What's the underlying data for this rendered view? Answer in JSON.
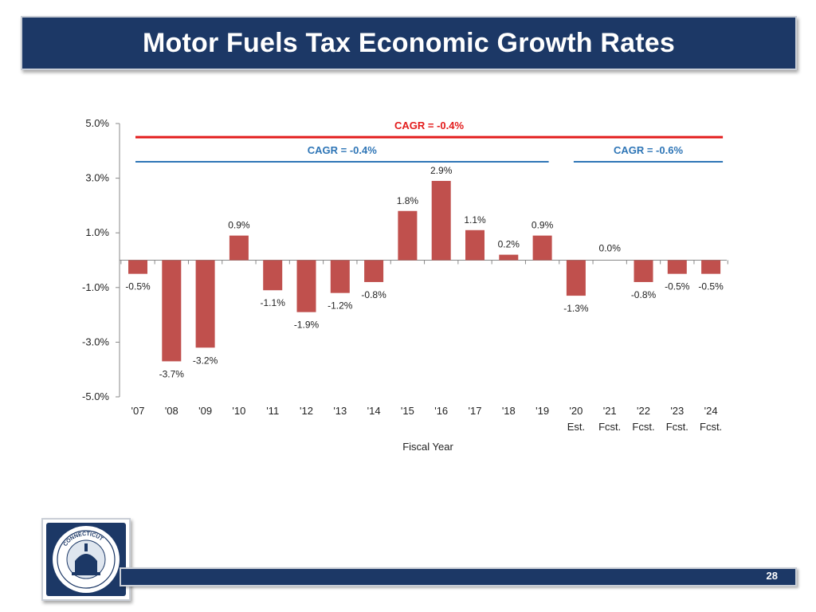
{
  "slide": {
    "title": "Motor Fuels Tax Economic Growth Rates",
    "page_number": "28",
    "logo": {
      "name": "Connecticut Office of Policy and Management seal",
      "text": "CONNECTICUT · OFFICE OF POLICY AND MANAGEMENT"
    }
  },
  "colors": {
    "header_bg": "#1c3866",
    "bar": "#c0504d",
    "cagr_overall": "#e31c1c",
    "cagr_segment": "#2e75b6",
    "axis": "#888888"
  },
  "chart_data": {
    "type": "bar",
    "title": "",
    "xlabel": "Fiscal Year",
    "ylabel": "",
    "ylim": [
      -5.0,
      5.0
    ],
    "ytick_values": [
      5,
      3,
      1,
      -1,
      -3,
      -5
    ],
    "ytick_labels": [
      "5.0%",
      "3.0%",
      "1.0%",
      "-1.0%",
      "-3.0%",
      "-5.0%"
    ],
    "categories": [
      "'07",
      "'08",
      "'09",
      "'10",
      "'11",
      "'12",
      "'13",
      "'14",
      "'15",
      "'16",
      "'17",
      "'18",
      "'19",
      "'20",
      "'21",
      "'22",
      "'23",
      "'24"
    ],
    "category_sublabels": [
      "",
      "",
      "",
      "",
      "",
      "",
      "",
      "",
      "",
      "",
      "",
      "",
      "",
      "Est.",
      "Fcst.",
      "Fcst.",
      "Fcst.",
      "Fcst."
    ],
    "values": [
      -0.5,
      -3.7,
      -3.2,
      0.9,
      -1.1,
      -1.9,
      -1.2,
      -0.8,
      1.8,
      2.9,
      1.1,
      0.2,
      0.9,
      -1.3,
      0.0,
      -0.8,
      -0.5,
      -0.5
    ],
    "data_labels": [
      "-0.5%",
      "-3.7%",
      "-3.2%",
      "0.9%",
      "-1.1%",
      "-1.9%",
      "-1.2%",
      "-0.8%",
      "1.8%",
      "2.9%",
      "1.1%",
      "0.2%",
      "0.9%",
      "-1.3%",
      "0.0%",
      "-0.8%",
      "-0.5%",
      "-0.5%"
    ],
    "cagr_lines": [
      {
        "label": "CAGR = -0.4%",
        "value": -0.4,
        "from_index": 0,
        "to_index": 17,
        "color": "#e31c1c",
        "level": 4.5
      },
      {
        "label": "CAGR = -0.4%",
        "value": -0.4,
        "from_index": 0,
        "to_index": 12,
        "color": "#2e75b6",
        "level": 3.6
      },
      {
        "label": "CAGR = -0.6%",
        "value": -0.6,
        "from_index": 13,
        "to_index": 17,
        "color": "#2e75b6",
        "level": 3.6
      }
    ]
  }
}
